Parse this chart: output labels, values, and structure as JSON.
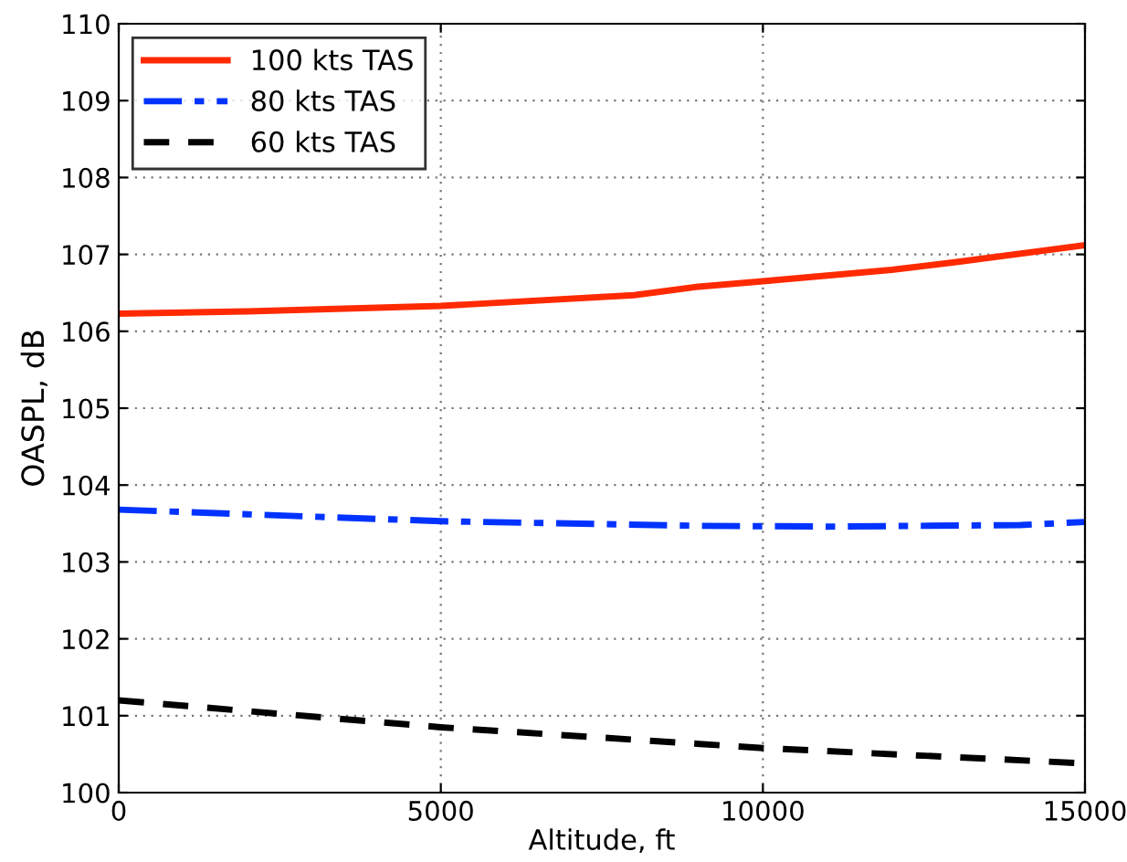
{
  "chart_data": {
    "type": "line",
    "xlabel": "Altitude, ft",
    "ylabel": "OASPL, dB",
    "xlim": [
      0,
      15000
    ],
    "xticks": [
      0,
      5000,
      10000,
      15000
    ],
    "ylim": [
      100,
      110
    ],
    "yticks": [
      100,
      101,
      102,
      103,
      104,
      105,
      106,
      107,
      108,
      109,
      110
    ],
    "grid": true,
    "legend": "top left",
    "marker": "none",
    "series": [
      {
        "name": "100 kts TAS",
        "color": "#ff2a00",
        "line_style": "solid",
        "x": [
          0,
          2000,
          5000,
          8000,
          9000,
          10000,
          12000,
          13000,
          15000
        ],
        "values": [
          106.23,
          106.26,
          106.33,
          106.47,
          106.58,
          106.65,
          106.8,
          106.9,
          107.12
        ]
      },
      {
        "name": "80 kts TAS",
        "color": "#0033ff",
        "line_style": "dashdot",
        "x": [
          0,
          2000,
          5000,
          9000,
          11000,
          14000,
          15000
        ],
        "values": [
          103.68,
          103.62,
          103.53,
          103.47,
          103.46,
          103.48,
          103.52
        ]
      },
      {
        "name": "60 kts TAS",
        "color": "#000000",
        "line_style": "dashed",
        "x": [
          0,
          5000,
          10000,
          15000
        ],
        "values": [
          101.2,
          100.85,
          100.58,
          100.38
        ]
      }
    ]
  }
}
